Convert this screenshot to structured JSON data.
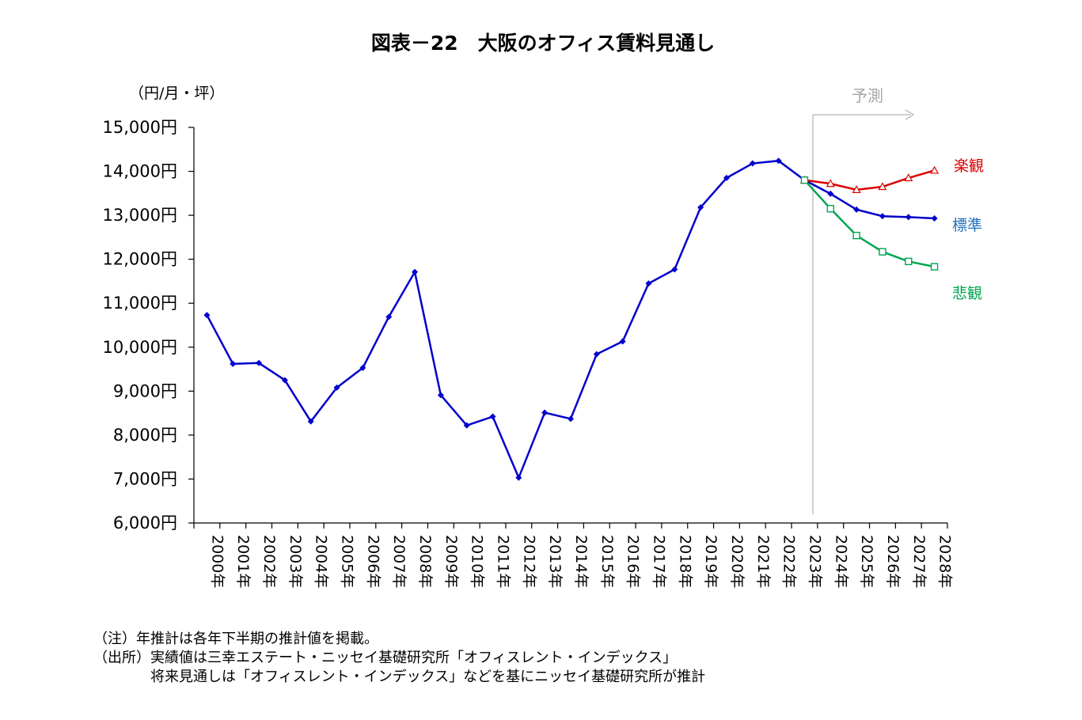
{
  "chart_data": {
    "type": "line",
    "title": "図表－22　大阪のオフィス賃料見通し",
    "unit_label": "（円/月・坪）",
    "ylim": [
      6000,
      15000
    ],
    "ytick_step": 1000,
    "y_ticks": [
      "6,000円",
      "7,000円",
      "8,000円",
      "9,000円",
      "10,000円",
      "11,000円",
      "12,000円",
      "13,000円",
      "14,000円",
      "15,000円"
    ],
    "categories": [
      "2000年",
      "2001年",
      "2002年",
      "2003年",
      "2004年",
      "2005年",
      "2006年",
      "2007年",
      "2008年",
      "2009年",
      "2010年",
      "2011年",
      "2012年",
      "2013年",
      "2014年",
      "2015年",
      "2016年",
      "2017年",
      "2018年",
      "2019年",
      "2020年",
      "2021年",
      "2022年",
      "2023年",
      "2024年",
      "2025年",
      "2026年",
      "2027年",
      "2028年"
    ],
    "forecast_label": "予測",
    "forecast_start": "2023年",
    "series": [
      {
        "name": "標準",
        "color": "#0000cc",
        "label_color": "#1f6fbf",
        "marker": "diamond",
        "values": [
          10730,
          9620,
          9640,
          9250,
          8310,
          9080,
          9530,
          10690,
          11710,
          8910,
          8220,
          8420,
          7030,
          8510,
          8370,
          9840,
          10130,
          11450,
          11770,
          13180,
          13850,
          14180,
          14240,
          13800,
          13490,
          13130,
          12980,
          12960,
          12930
        ]
      },
      {
        "name": "楽観",
        "color": "#dd0000",
        "label_color": "#dd0000",
        "marker": "triangle",
        "values": [
          null,
          null,
          null,
          null,
          null,
          null,
          null,
          null,
          null,
          null,
          null,
          null,
          null,
          null,
          null,
          null,
          null,
          null,
          null,
          null,
          null,
          null,
          null,
          13800,
          13720,
          13580,
          13650,
          13850,
          14020
        ]
      },
      {
        "name": "悲観",
        "color": "#00a651",
        "label_color": "#00a651",
        "marker": "square",
        "values": [
          null,
          null,
          null,
          null,
          null,
          null,
          null,
          null,
          null,
          null,
          null,
          null,
          null,
          null,
          null,
          null,
          null,
          null,
          null,
          null,
          null,
          null,
          null,
          13800,
          13150,
          12540,
          12170,
          11950,
          11830
        ]
      }
    ]
  },
  "notes": {
    "line1": "（注）年推計は各年下半期の推計値を掲載。",
    "line2": "（出所）実績値は三幸エステート・ニッセイ基礎研究所「オフィスレント・インデックス」",
    "line3": "　　　　将来見通しは「オフィスレント・インデックス」などを基にニッセイ基礎研究所が推計"
  }
}
